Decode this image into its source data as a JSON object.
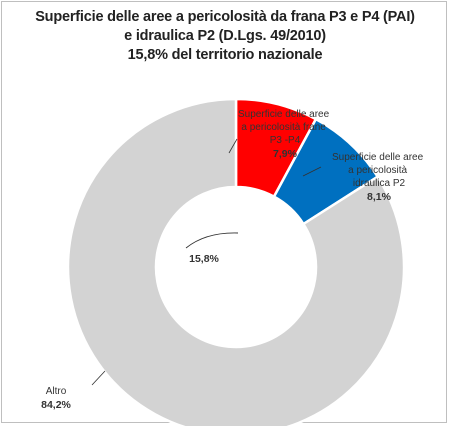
{
  "chart_data": {
    "type": "pie",
    "title_lines": [
      "Superficie delle aree a pericolosità da frana P3 e P4 (PAI)",
      "e idraulica P2 (D.Lgs. 49/2010)",
      "15,8% del territorio nazionale"
    ],
    "categories": [
      "Superficie delle aree a pericolosità frane P3 -P4",
      "Superficie delle aree a pericolosità idraulica P2",
      "Altro"
    ],
    "values": [
      7.9,
      8.1,
      84.2
    ],
    "value_labels": [
      "7,9%",
      "8,1%",
      "84,2%"
    ],
    "colors": [
      "#ff0000",
      "#0070c0",
      "#d3d3d3"
    ],
    "center_annotation": "15,8%",
    "legend": "none"
  },
  "labels": {
    "frane_lines": [
      "Superficie delle aree",
      "a pericolosità frane",
      "P3 -P4"
    ],
    "frane_value": "7,9%",
    "idraulica_lines": [
      "Superficie delle aree",
      "a pericolosità",
      "idraulica P2"
    ],
    "idraulica_value": "8,1%",
    "altro_name": "Altro",
    "altro_value": "84,2%"
  }
}
